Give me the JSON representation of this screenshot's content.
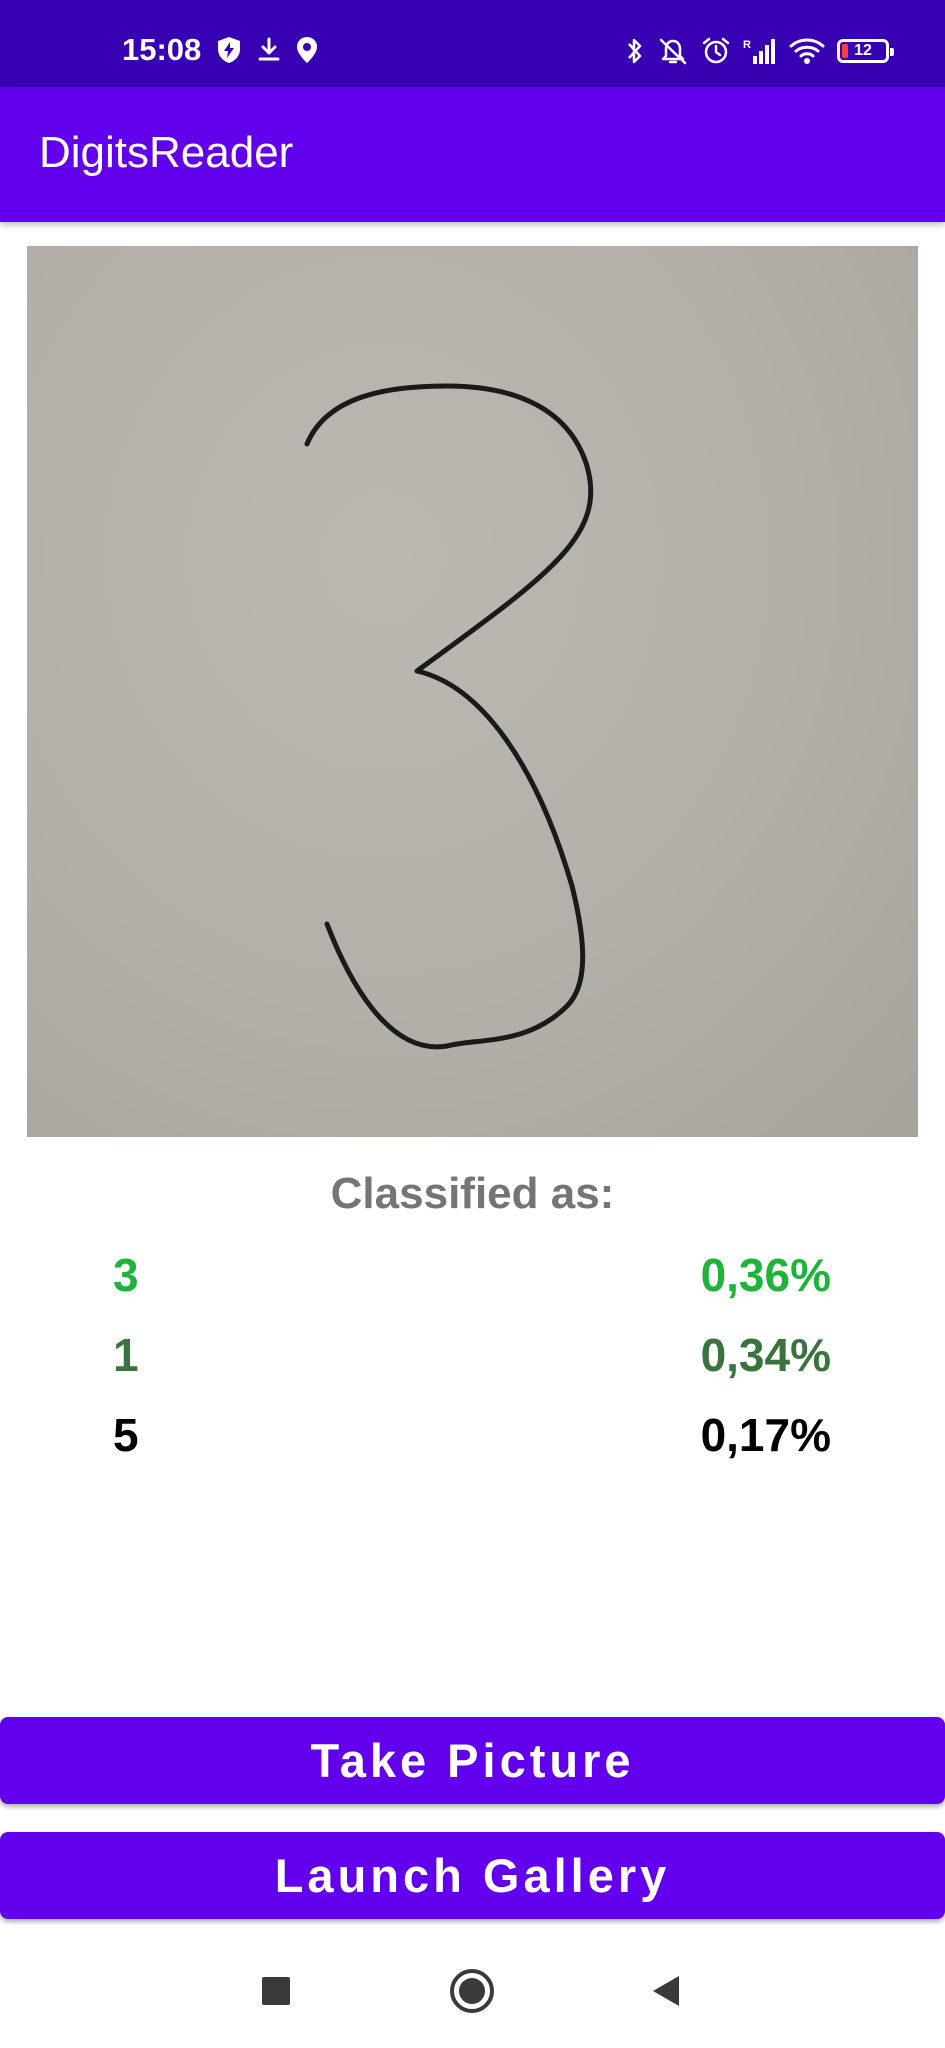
{
  "status_bar": {
    "time": "15:08",
    "battery_level": "12",
    "left_icons": [
      "shield-bolt-icon",
      "download-icon",
      "location-pin-icon"
    ],
    "right_icons": [
      "bluetooth-icon",
      "bell-off-icon",
      "alarm-icon",
      "signal-icon",
      "wifi-icon",
      "battery-icon"
    ],
    "background_color": "#3700b3"
  },
  "app_bar": {
    "title": "DigitsReader",
    "background_color": "#6200ee"
  },
  "image": {
    "description_icon": "handwritten-digit-photo"
  },
  "classification": {
    "label": "Classified as:",
    "results": [
      {
        "digit": "3",
        "probability": "0,36%",
        "color": "#1fb33a"
      },
      {
        "digit": "1",
        "probability": "0,34%",
        "color": "#3a733d"
      },
      {
        "digit": "5",
        "probability": "0,17%",
        "color": "#000000"
      }
    ]
  },
  "buttons": {
    "take_picture": "Take Picture",
    "launch_gallery": "Launch Gallery",
    "color": "#6200ee"
  },
  "nav_bar": {
    "icons": [
      "recents-square-icon",
      "home-circle-icon",
      "back-triangle-icon"
    ]
  }
}
